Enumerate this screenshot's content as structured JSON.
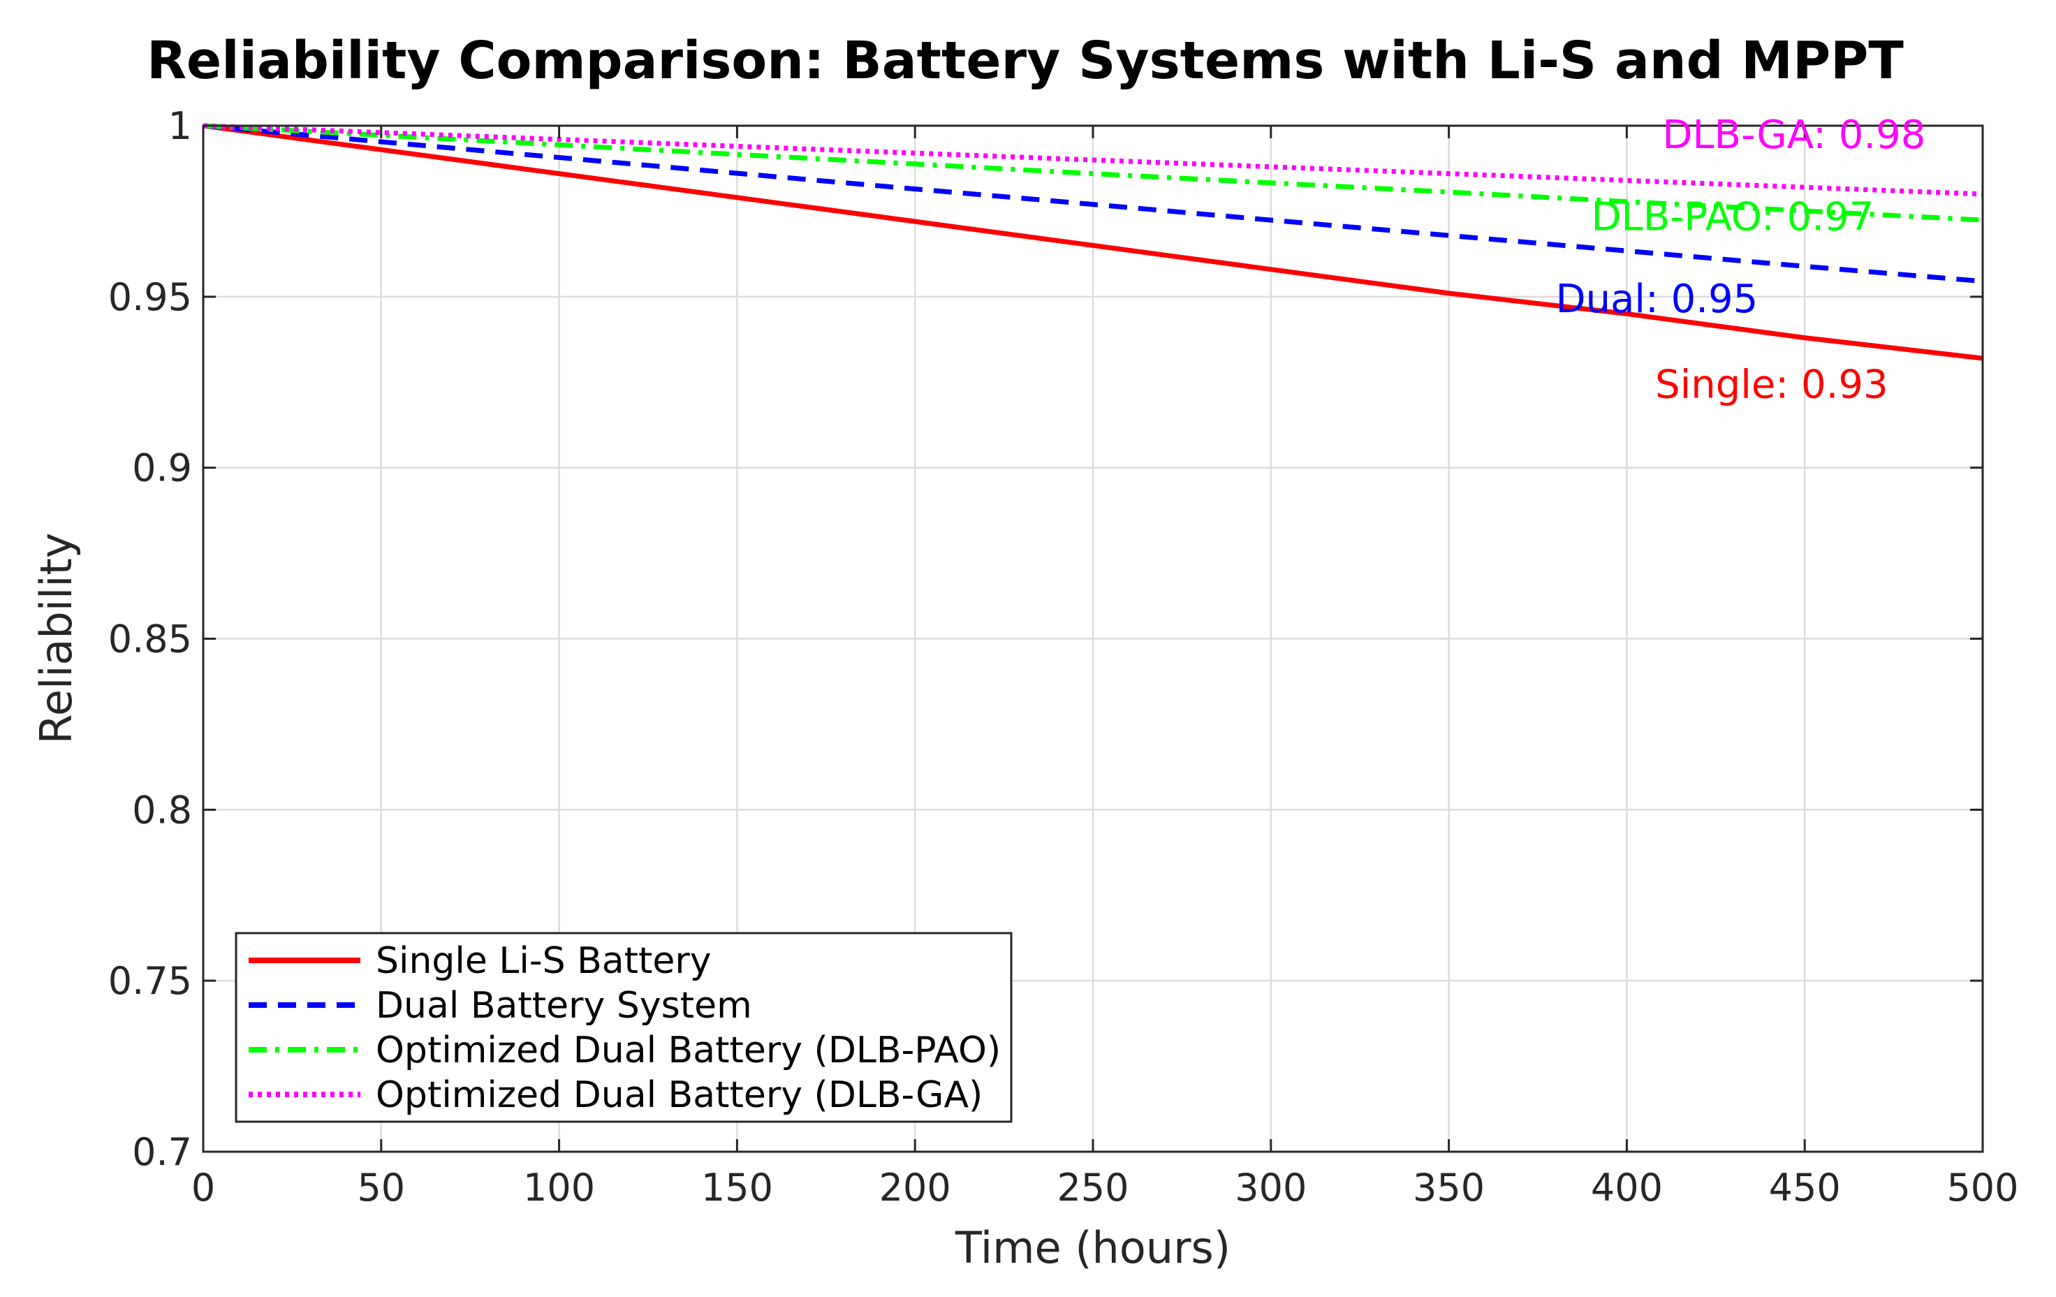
{
  "chart_data": {
    "type": "line",
    "title": "Reliability Comparison: Battery Systems with Li-S and MPPT",
    "xlabel": "Time (hours)",
    "ylabel": "Reliability",
    "xlim": [
      0,
      500
    ],
    "ylim": [
      0.7,
      1
    ],
    "x_ticks": [
      "0",
      "50",
      "100",
      "150",
      "200",
      "250",
      "300",
      "350",
      "400",
      "450",
      "500"
    ],
    "y_ticks": [
      "0.7",
      "0.75",
      "0.8",
      "0.85",
      "0.9",
      "0.95",
      "1"
    ],
    "grid": true,
    "legend_position": "bottom-left",
    "x": [
      0,
      50,
      100,
      150,
      200,
      250,
      300,
      350,
      400,
      450,
      500
    ],
    "series": [
      {
        "name": "Single Li-S Battery",
        "color": "#ff0000",
        "style": "solid",
        "values": [
          1.0,
          0.993,
          0.986,
          0.979,
          0.972,
          0.965,
          0.958,
          0.951,
          0.945,
          0.938,
          0.932
        ]
      },
      {
        "name": "Dual Battery System",
        "color": "#0000ff",
        "style": "dashed",
        "values": [
          1.0,
          0.9953,
          0.9907,
          0.9861,
          0.9815,
          0.977,
          0.9724,
          0.9679,
          0.9634,
          0.9589,
          0.9545
        ]
      },
      {
        "name": "Optimized Dual Battery (DLB-PAO)",
        "color": "#00ff00",
        "style": "dashdot",
        "values": [
          1.0,
          0.9972,
          0.9944,
          0.9916,
          0.9888,
          0.986,
          0.9833,
          0.9806,
          0.9778,
          0.9751,
          0.9724
        ]
      },
      {
        "name": "Optimized Dual Battery (DLB-GA)",
        "color": "#ff00ff",
        "style": "dotted",
        "values": [
          1.0,
          0.998,
          0.996,
          0.994,
          0.992,
          0.99,
          0.988,
          0.986,
          0.984,
          0.982,
          0.98
        ]
      }
    ],
    "annotations": [
      {
        "text": "DLB-GA: 0.98",
        "x": 410,
        "y": 0.9935,
        "color": "#ff00ff"
      },
      {
        "text": "DLB-PAO: 0.97",
        "x": 390,
        "y": 0.9695,
        "color": "#00ff00"
      },
      {
        "text": "Dual: 0.95",
        "x": 380,
        "y": 0.9455,
        "color": "#0000ff"
      },
      {
        "text": "Single: 0.93",
        "x": 408,
        "y": 0.9205,
        "color": "#ff0000"
      }
    ]
  }
}
